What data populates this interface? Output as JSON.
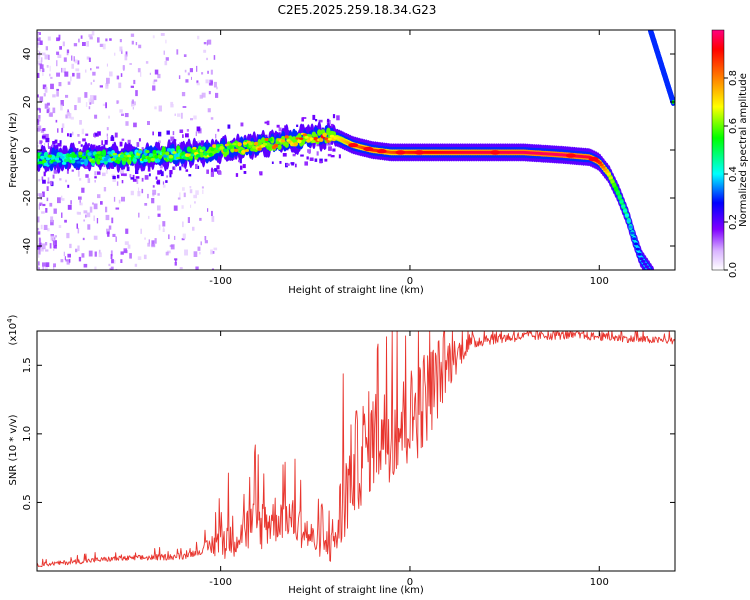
{
  "title": "C2E5.2025.259.18.34.G23",
  "chart_data": [
    {
      "type": "heatmap",
      "name": "spectrogram",
      "xlabel": "Height of straight line (km)",
      "ylabel": "Frequency (Hz)",
      "xlim": [
        -197,
        140
      ],
      "ylim": [
        -50,
        50
      ],
      "x_ticks": [
        -100,
        0,
        100
      ],
      "y_ticks": [
        -40,
        -20,
        0,
        20,
        40
      ],
      "colorbar": {
        "label": "Normalized spectral amplitude",
        "range": [
          0,
          1
        ],
        "ticks": [
          "0.0",
          "0.2",
          "0.4",
          "0.6",
          "0.8"
        ],
        "tick_values": [
          0,
          0.2,
          0.4,
          0.6,
          0.8
        ],
        "colors": [
          "#ffffff",
          "#d9b3ff",
          "#8000ff",
          "#0000ff",
          "#00ffff",
          "#00ff00",
          "#ffff00",
          "#ff8000",
          "#ff0000",
          "#ff0080"
        ]
      },
      "ridge": {
        "x": [
          -190,
          -170,
          -150,
          -130,
          -110,
          -90,
          -70,
          -55,
          -45,
          -38,
          -30,
          -20,
          -10,
          0,
          10,
          30,
          60,
          80,
          95,
          100,
          105,
          110,
          115,
          118,
          122,
          128
        ],
        "freq_hz": [
          -4,
          -3,
          -3,
          -2,
          -1,
          1,
          3,
          5,
          6,
          5,
          2,
          0,
          -1,
          -1,
          -1,
          -1,
          -1,
          -2,
          -3,
          -5,
          -10,
          -18,
          -28,
          -36,
          -45,
          -52
        ],
        "intensity": [
          0.3,
          0.32,
          0.38,
          0.35,
          0.45,
          0.5,
          0.55,
          0.6,
          0.65,
          0.7,
          0.8,
          0.9,
          0.85,
          0.9,
          0.92,
          0.95,
          0.97,
          0.98,
          0.95,
          0.9,
          0.7,
          0.5,
          0.4,
          0.3,
          0.25,
          0.2
        ]
      },
      "secondary_ridge": {
        "x": [
          127,
          131,
          135,
          139
        ],
        "freq_hz": [
          50,
          40,
          30,
          20
        ]
      }
    },
    {
      "type": "line",
      "name": "snr",
      "xlabel": "Height of straight line (km)",
      "ylabel": "SNR (10 * v/v)",
      "scale_label": "(x10",
      "scale_exponent": "4",
      "y_scale": 10000,
      "xlim": [
        -197,
        140
      ],
      "ylim": [
        0,
        17500
      ],
      "x_ticks": [
        -100,
        0,
        100
      ],
      "y_ticks": [
        0.5,
        1.0,
        1.5
      ],
      "y_tick_labels": [
        "0.5",
        "1.0",
        "1.5"
      ],
      "color": "#e8352e",
      "trend": {
        "x": [
          -197,
          -160,
          -120,
          -100,
          -80,
          -65,
          -50,
          -40,
          -30,
          -20,
          -10,
          0,
          10,
          20,
          30,
          40,
          60,
          80,
          100,
          120,
          140
        ],
        "y": [
          400,
          800,
          1000,
          1800,
          2800,
          3600,
          1800,
          1500,
          6500,
          8500,
          9000,
          10000,
          12000,
          14500,
          16300,
          16800,
          17000,
          17100,
          17000,
          16800,
          16700
        ]
      },
      "noise": {
        "x": [
          -197,
          -110,
          -100,
          -80,
          -70,
          -55,
          -45,
          -35,
          -25,
          -10,
          5,
          15,
          25,
          35,
          60,
          140
        ],
        "amp": [
          150,
          250,
          1400,
          2000,
          1800,
          1400,
          900,
          3500,
          4000,
          3500,
          3800,
          3000,
          1200,
          500,
          350,
          250
        ]
      }
    }
  ]
}
